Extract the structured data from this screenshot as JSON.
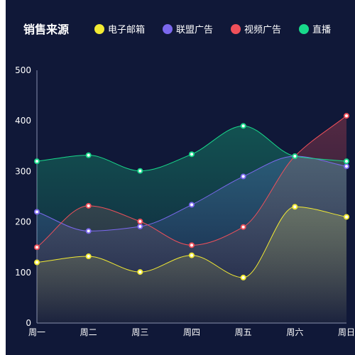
{
  "chart_data": {
    "type": "area",
    "title": "销售来源",
    "categories": [
      "周一",
      "周二",
      "周三",
      "周四",
      "周五",
      "周六",
      "周日"
    ],
    "ylim": [
      0,
      500
    ],
    "yticks": [
      0,
      100,
      200,
      300,
      400,
      500
    ],
    "grid": false,
    "legend_position": "top",
    "smooth": true,
    "series": [
      {
        "name": "电子邮箱",
        "color": "#f2ea33",
        "values": [
          120,
          132,
          101,
          134,
          90,
          230,
          210
        ]
      },
      {
        "name": "联盟广告",
        "color": "#7b68ee",
        "values": [
          220,
          182,
          191,
          234,
          290,
          330,
          310
        ]
      },
      {
        "name": "视频广告",
        "color": "#f0505a",
        "values": [
          150,
          232,
          201,
          154,
          190,
          330,
          410
        ]
      },
      {
        "name": "直播",
        "color": "#18d98b",
        "values": [
          320,
          332,
          301,
          334,
          390,
          330,
          320
        ]
      }
    ]
  },
  "colors": {
    "background": "#101838",
    "axis": "#8790b0",
    "text": "#ffffff"
  }
}
